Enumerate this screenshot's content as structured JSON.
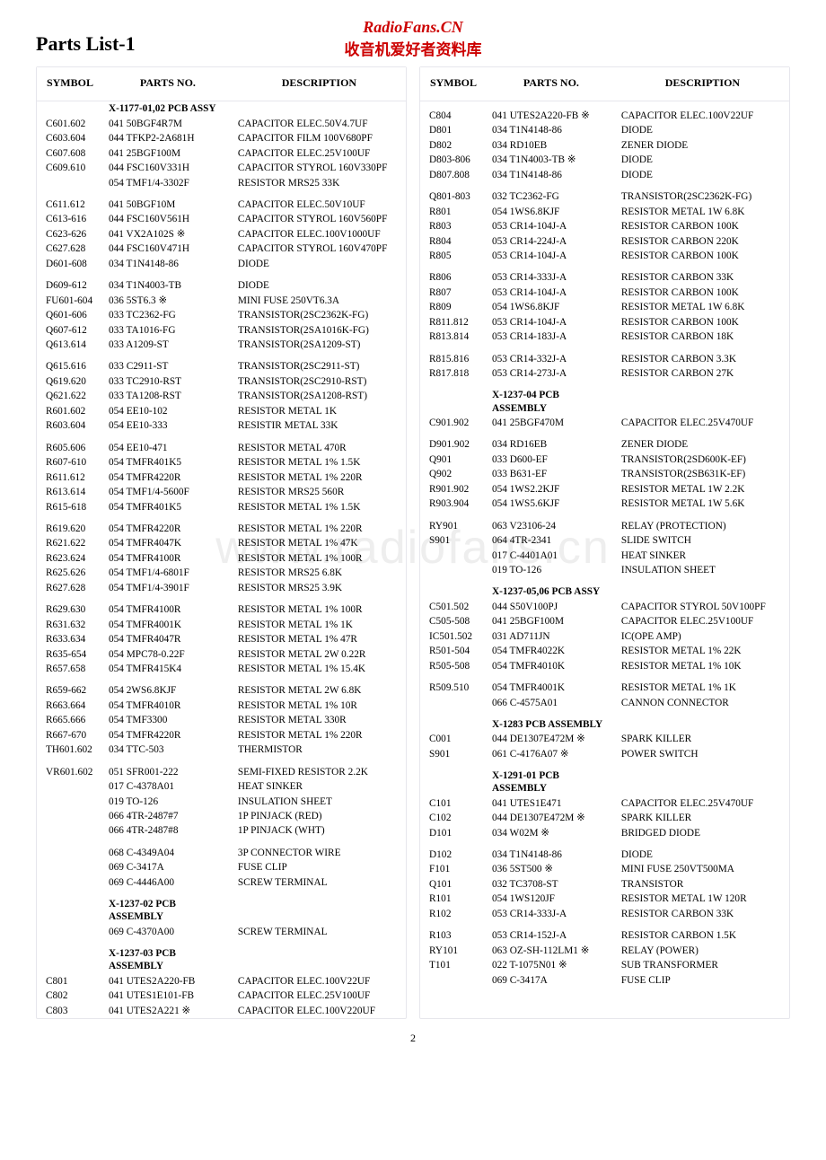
{
  "header": {
    "site": "RadioFans.CN",
    "subtitle": "收音机爱好者资料库",
    "page_title": "Parts List-1"
  },
  "watermark": "www.radiofans.cn",
  "pagenum": "2",
  "col_headers": [
    "SYMBOL",
    "PARTS NO.",
    "DESCRIPTION"
  ],
  "left": [
    {
      "s": "",
      "p": "X-1177-01,02 PCB ASSY",
      "d": "",
      "bold": true,
      "gap": false
    },
    {
      "s": "C601.602",
      "p": "041 50BGF4R7M",
      "d": "CAPACITOR ELEC.50V4.7UF"
    },
    {
      "s": "C603.604",
      "p": "044 TFKP2-2A681H",
      "d": "CAPACITOR FILM 100V680PF"
    },
    {
      "s": "C607.608",
      "p": "041 25BGF100M",
      "d": "CAPACITOR ELEC.25V100UF"
    },
    {
      "s": "C609.610",
      "p": "044 FSC160V331H",
      "d": "CAPACITOR STYROL 160V330PF"
    },
    {
      "s": "",
      "p": "054 TMF1/4-3302F",
      "d": "RESISTOR MRS25 33K"
    },
    {
      "s": "C611.612",
      "p": "041 50BGF10M",
      "d": "CAPACITOR ELEC.50V10UF",
      "gap": true
    },
    {
      "s": "C613-616",
      "p": "044 FSC160V561H",
      "d": "CAPACITOR STYROL 160V560PF"
    },
    {
      "s": "C623-626",
      "p": "041 VX2A102S ※",
      "d": "CAPACITOR ELEC.100V1000UF"
    },
    {
      "s": "C627.628",
      "p": "044 FSC160V471H",
      "d": "CAPACITOR STYROL 160V470PF"
    },
    {
      "s": "D601-608",
      "p": "034 T1N4148-86",
      "d": "DIODE"
    },
    {
      "s": "D609-612",
      "p": "034 T1N4003-TB",
      "d": "DIODE",
      "gap": true
    },
    {
      "s": "FU601-604",
      "p": "036 5ST6.3 ※",
      "d": "MINI FUSE 250VT6.3A"
    },
    {
      "s": "Q601-606",
      "p": "033 TC2362-FG",
      "d": "TRANSISTOR(2SC2362K-FG)"
    },
    {
      "s": "Q607-612",
      "p": "033 TA1016-FG",
      "d": "TRANSISTOR(2SA1016K-FG)"
    },
    {
      "s": "Q613.614",
      "p": "033 A1209-ST",
      "d": "TRANSISTOR(2SA1209-ST)"
    },
    {
      "s": "Q615.616",
      "p": "033 C2911-ST",
      "d": "TRANSISTOR(2SC2911-ST)",
      "gap": true
    },
    {
      "s": "Q619.620",
      "p": "033 TC2910-RST",
      "d": "TRANSISTOR(2SC2910-RST)"
    },
    {
      "s": "Q621.622",
      "p": "033 TA1208-RST",
      "d": "TRANSISTOR(2SA1208-RST)"
    },
    {
      "s": "R601.602",
      "p": "054 EE10-102",
      "d": "RESISTOR METAL 1K"
    },
    {
      "s": "R603.604",
      "p": "054 EE10-333",
      "d": "RESISTIR METAL 33K"
    },
    {
      "s": "R605.606",
      "p": "054 EE10-471",
      "d": "RESISTOR METAL 470R",
      "gap": true
    },
    {
      "s": "R607-610",
      "p": "054 TMFR401K5",
      "d": "RESISTOR METAL 1% 1.5K"
    },
    {
      "s": "R611.612",
      "p": "054 TMFR4220R",
      "d": "RESISTOR METAL 1% 220R"
    },
    {
      "s": "R613.614",
      "p": "054 TMF1/4-5600F",
      "d": "RESISTOR MRS25 560R"
    },
    {
      "s": "R615-618",
      "p": "054 TMFR401K5",
      "d": "RESISTOR METAL 1% 1.5K"
    },
    {
      "s": "R619.620",
      "p": "054 TMFR4220R",
      "d": "RESISTOR METAL 1% 220R",
      "gap": true
    },
    {
      "s": "R621.622",
      "p": "054 TMFR4047K",
      "d": "RESISTOR METAL 1% 47K"
    },
    {
      "s": "R623.624",
      "p": "054 TMFR4100R",
      "d": "RESISTOR METAL 1% 100R"
    },
    {
      "s": "R625.626",
      "p": "054 TMF1/4-6801F",
      "d": "RESISTOR MRS25 6.8K"
    },
    {
      "s": "R627.628",
      "p": "054 TMF1/4-3901F",
      "d": "RESISTOR MRS25 3.9K"
    },
    {
      "s": "R629.630",
      "p": "054 TMFR4100R",
      "d": "RESISTOR METAL 1% 100R",
      "gap": true
    },
    {
      "s": "R631.632",
      "p": "054 TMFR4001K",
      "d": "RESISTOR METAL 1% 1K"
    },
    {
      "s": "R633.634",
      "p": "054 TMFR4047R",
      "d": "RESISTOR METAL 1% 47R"
    },
    {
      "s": "R635-654",
      "p": "054 MPC78-0.22F",
      "d": "RESISTOR METAL 2W 0.22R"
    },
    {
      "s": "R657.658",
      "p": "054 TMFR415K4",
      "d": "RESISTOR METAL 1% 15.4K"
    },
    {
      "s": "R659-662",
      "p": "054 2WS6.8KJF",
      "d": "RESISTOR METAL 2W 6.8K",
      "gap": true
    },
    {
      "s": "R663.664",
      "p": "054 TMFR4010R",
      "d": "RESISTOR METAL 1% 10R"
    },
    {
      "s": "R665.666",
      "p": "054 TMF3300",
      "d": "RESISTOR METAL 330R"
    },
    {
      "s": "R667-670",
      "p": "054 TMFR4220R",
      "d": "RESISTOR METAL 1% 220R"
    },
    {
      "s": "TH601.602",
      "p": "034 TTC-503",
      "d": "THERMISTOR"
    },
    {
      "s": "VR601.602",
      "p": "051 SFR001-222",
      "d": "SEMI-FIXED RESISTOR 2.2K",
      "gap": true
    },
    {
      "s": "",
      "p": "017 C-4378A01",
      "d": "HEAT SINKER"
    },
    {
      "s": "",
      "p": "019 TO-126",
      "d": "INSULATION SHEET"
    },
    {
      "s": "",
      "p": "066 4TR-2487#7",
      "d": "1P PINJACK (RED)"
    },
    {
      "s": "",
      "p": "066 4TR-2487#8",
      "d": "1P PINJACK (WHT)"
    },
    {
      "s": "",
      "p": "068 C-4349A04",
      "d": "3P CONNECTOR WIRE",
      "gap": true
    },
    {
      "s": "",
      "p": "069 C-3417A",
      "d": "FUSE CLIP"
    },
    {
      "s": "",
      "p": "069 C-4446A00",
      "d": "SCREW TERMINAL"
    },
    {
      "s": "",
      "p": "X-1237-02 PCB ASSEMBLY",
      "d": "",
      "bold": true,
      "gap": true
    },
    {
      "s": "",
      "p": "069 C-4370A00",
      "d": "SCREW TERMINAL"
    },
    {
      "s": "",
      "p": "X-1237-03 PCB ASSEMBLY",
      "d": "",
      "bold": true,
      "gap": true
    },
    {
      "s": "C801",
      "p": "041 UTES2A220-FB",
      "d": "CAPACITOR ELEC.100V22UF"
    },
    {
      "s": "C802",
      "p": "041 UTES1E101-FB",
      "d": "CAPACITOR ELEC.25V100UF"
    },
    {
      "s": "C803",
      "p": "041 UTES2A221 ※",
      "d": "CAPACITOR ELEC.100V220UF"
    }
  ],
  "right": [
    {
      "s": "C804",
      "p": "041 UTES2A220-FB ※",
      "d": "CAPACITOR ELEC.100V22UF",
      "gap": true
    },
    {
      "s": "D801",
      "p": "034 T1N4148-86",
      "d": "DIODE"
    },
    {
      "s": "D802",
      "p": "034 RD10EB",
      "d": "ZENER DIODE"
    },
    {
      "s": "D803-806",
      "p": "034 T1N4003-TB ※",
      "d": "DIODE"
    },
    {
      "s": "D807.808",
      "p": "034 T1N4148-86",
      "d": "DIODE"
    },
    {
      "s": "Q801-803",
      "p": "032 TC2362-FG",
      "d": "TRANSISTOR(2SC2362K-FG)",
      "gap": true
    },
    {
      "s": "R801",
      "p": "054 1WS6.8KJF",
      "d": "RESISTOR METAL 1W 6.8K"
    },
    {
      "s": "R803",
      "p": "053 CR14-104J-A",
      "d": "RESISTOR CARBON 100K"
    },
    {
      "s": "R804",
      "p": "053 CR14-224J-A",
      "d": "RESISTOR CARBON 220K"
    },
    {
      "s": "R805",
      "p": "053 CR14-104J-A",
      "d": "RESISTOR CARBON 100K"
    },
    {
      "s": "R806",
      "p": "053 CR14-333J-A",
      "d": "RESISTOR CARBON 33K",
      "gap": true
    },
    {
      "s": "R807",
      "p": "053 CR14-104J-A",
      "d": "RESISTOR CARBON 100K"
    },
    {
      "s": "R809",
      "p": "054 1WS6.8KJF",
      "d": "RESISTOR METAL 1W 6.8K"
    },
    {
      "s": "R811.812",
      "p": "053 CR14-104J-A",
      "d": "RESISTOR CARBON 100K"
    },
    {
      "s": "R813.814",
      "p": "053 CR14-183J-A",
      "d": "RESISTOR CARBON 18K"
    },
    {
      "s": "R815.816",
      "p": "053 CR14-332J-A",
      "d": "RESISTOR CARBON 3.3K",
      "gap": true
    },
    {
      "s": "R817.818",
      "p": "053 CR14-273J-A",
      "d": "RESISTOR CARBON 27K"
    },
    {
      "s": "",
      "p": "X-1237-04 PCB ASSEMBLY",
      "d": "",
      "bold": true,
      "gap": true
    },
    {
      "s": "C901.902",
      "p": "041 25BGF470M",
      "d": "CAPACITOR ELEC.25V470UF"
    },
    {
      "s": "D901.902",
      "p": "034 RD16EB",
      "d": "ZENER DIODE",
      "gap": true
    },
    {
      "s": "Q901",
      "p": "033 D600-EF",
      "d": "TRANSISTOR(2SD600K-EF)"
    },
    {
      "s": "Q902",
      "p": "033 B631-EF",
      "d": "TRANSISTOR(2SB631K-EF)"
    },
    {
      "s": "R901.902",
      "p": "054 1WS2.2KJF",
      "d": "RESISTOR METAL 1W 2.2K"
    },
    {
      "s": "R903.904",
      "p": "054 1WS5.6KJF",
      "d": "RESISTOR METAL 1W 5.6K"
    },
    {
      "s": "RY901",
      "p": "063 V23106-24",
      "d": "RELAY (PROTECTION)",
      "gap": true
    },
    {
      "s": "S901",
      "p": "064 4TR-2341",
      "d": "SLIDE SWITCH"
    },
    {
      "s": "",
      "p": "017 C-4401A01",
      "d": "HEAT SINKER"
    },
    {
      "s": "",
      "p": "019 TO-126",
      "d": "INSULATION SHEET"
    },
    {
      "s": "",
      "p": "X-1237-05,06 PCB ASSY",
      "d": "",
      "bold": true,
      "gap": true
    },
    {
      "s": "C501.502",
      "p": "044 S50V100PJ",
      "d": "CAPACITOR STYROL 50V100PF"
    },
    {
      "s": "C505-508",
      "p": "041 25BGF100M",
      "d": "CAPACITOR ELEC.25V100UF"
    },
    {
      "s": "IC501.502",
      "p": "031 AD711JN",
      "d": "IC(OPE AMP)"
    },
    {
      "s": "R501-504",
      "p": "054 TMFR4022K",
      "d": "RESISTOR METAL 1% 22K"
    },
    {
      "s": "R505-508",
      "p": "054 TMFR4010K",
      "d": "RESISTOR METAL 1% 10K"
    },
    {
      "s": "R509.510",
      "p": "054 TMFR4001K",
      "d": "RESISTOR METAL 1% 1K",
      "gap": true
    },
    {
      "s": "",
      "p": "066 C-4575A01",
      "d": "CANNON CONNECTOR"
    },
    {
      "s": "",
      "p": "X-1283 PCB ASSEMBLY",
      "d": "",
      "bold": true,
      "gap": true
    },
    {
      "s": "C001",
      "p": "044 DE1307E472M ※",
      "d": "SPARK KILLER"
    },
    {
      "s": "S901",
      "p": "061 C-4176A07 ※",
      "d": "POWER SWITCH"
    },
    {
      "s": "",
      "p": "X-1291-01 PCB ASSEMBLY",
      "d": "",
      "bold": true,
      "gap": true
    },
    {
      "s": "C101",
      "p": "041 UTES1E471",
      "d": "CAPACITOR ELEC.25V470UF"
    },
    {
      "s": "C102",
      "p": "044 DE1307E472M ※",
      "d": "SPARK KILLER"
    },
    {
      "s": "D101",
      "p": "034 W02M ※",
      "d": "BRIDGED DIODE"
    },
    {
      "s": "D102",
      "p": "034 T1N4148-86",
      "d": "DIODE",
      "gap": true
    },
    {
      "s": "F101",
      "p": "036 5ST500 ※",
      "d": "MINI FUSE 250VT500MA"
    },
    {
      "s": "Q101",
      "p": "032 TC3708-ST",
      "d": "TRANSISTOR"
    },
    {
      "s": "R101",
      "p": "054 1WS120JF",
      "d": "RESISTOR METAL 1W 120R"
    },
    {
      "s": "R102",
      "p": "053 CR14-333J-A",
      "d": "RESISTOR CARBON 33K"
    },
    {
      "s": "R103",
      "p": "053 CR14-152J-A",
      "d": "RESISTOR CARBON 1.5K",
      "gap": true
    },
    {
      "s": "RY101",
      "p": "063 OZ-SH-112LM1 ※",
      "d": "RELAY (POWER)"
    },
    {
      "s": "T101",
      "p": "022 T-1075N01 ※",
      "d": "SUB TRANSFORMER"
    },
    {
      "s": "",
      "p": "069 C-3417A",
      "d": "FUSE CLIP"
    }
  ]
}
